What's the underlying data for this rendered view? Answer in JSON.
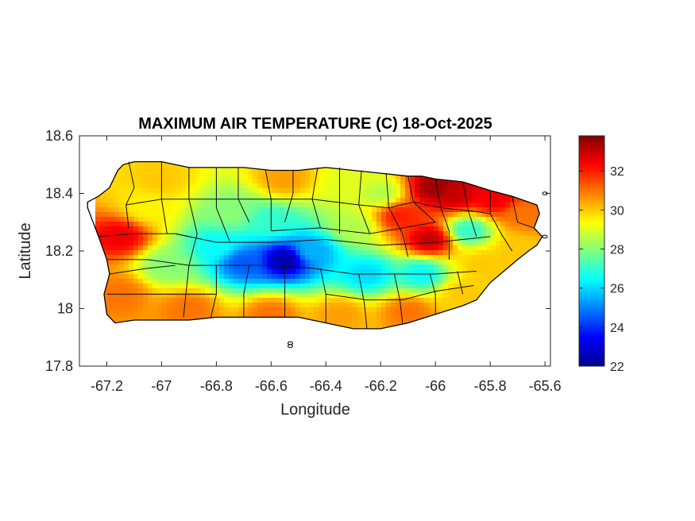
{
  "chart_data": {
    "type": "heatmap",
    "title": "MAXIMUM AIR TEMPERATURE (C) 18-Oct-2025",
    "xlabel": "Longitude",
    "ylabel": "Latitude",
    "xlim": [
      -67.3,
      -65.58
    ],
    "ylim": [
      17.8,
      18.6
    ],
    "xticks": [
      -67.2,
      -67,
      -66.8,
      -66.6,
      -66.4,
      -66.2,
      -66,
      -65.8,
      -65.6
    ],
    "xtick_labels": [
      "-67.2",
      "-67",
      "-66.8",
      "-66.6",
      "-66.4",
      "-66.2",
      "-66",
      "-65.8",
      "-65.6"
    ],
    "yticks": [
      17.8,
      18,
      18.2,
      18.4,
      18.6
    ],
    "ytick_labels": [
      "17.8",
      "18",
      "18.2",
      "18.4",
      "18.6"
    ],
    "colorbar": {
      "range": [
        22,
        33.8
      ],
      "ticks": [
        22,
        24,
        26,
        28,
        30,
        32
      ],
      "tick_labels": [
        "22",
        "24",
        "26",
        "28",
        "30",
        "32"
      ],
      "colormap": "jet",
      "placement": "right"
    },
    "field_samples": [
      {
        "lon": -66.55,
        "lat": 18.17,
        "value": 22.5
      },
      {
        "lon": -66.7,
        "lat": 18.16,
        "value": 24.5
      },
      {
        "lon": -66.45,
        "lat": 18.2,
        "value": 25.5
      },
      {
        "lon": -66.8,
        "lat": 18.22,
        "value": 26.5
      },
      {
        "lon": -66.25,
        "lat": 18.12,
        "value": 26
      },
      {
        "lon": -66.05,
        "lat": 18.12,
        "value": 26.5
      },
      {
        "lon": -65.88,
        "lat": 18.27,
        "value": 27
      },
      {
        "lon": -66.6,
        "lat": 18.3,
        "value": 27
      },
      {
        "lon": -66.75,
        "lat": 18.33,
        "value": 28
      },
      {
        "lon": -66.98,
        "lat": 18.15,
        "value": 28
      },
      {
        "lon": -66.3,
        "lat": 18.28,
        "value": 28.5
      },
      {
        "lon": -67.05,
        "lat": 18.35,
        "value": 29.5
      },
      {
        "lon": -67.0,
        "lat": 18.45,
        "value": 30
      },
      {
        "lon": -66.55,
        "lat": 18.45,
        "value": 30.5
      },
      {
        "lon": -66.3,
        "lat": 18.44,
        "value": 29
      },
      {
        "lon": -66.2,
        "lat": 18.4,
        "value": 28.5
      },
      {
        "lon": -67.15,
        "lat": 18.25,
        "value": 32.5
      },
      {
        "lon": -67.15,
        "lat": 18.05,
        "value": 31
      },
      {
        "lon": -66.9,
        "lat": 18.0,
        "value": 31
      },
      {
        "lon": -66.6,
        "lat": 17.98,
        "value": 31
      },
      {
        "lon": -66.35,
        "lat": 17.98,
        "value": 30.5
      },
      {
        "lon": -66.1,
        "lat": 17.99,
        "value": 31
      },
      {
        "lon": -65.9,
        "lat": 18.05,
        "value": 30
      },
      {
        "lon": -65.82,
        "lat": 18.15,
        "value": 30
      },
      {
        "lon": -66.0,
        "lat": 18.42,
        "value": 33.5
      },
      {
        "lon": -65.93,
        "lat": 18.4,
        "value": 33
      },
      {
        "lon": -65.78,
        "lat": 18.38,
        "value": 32.5
      },
      {
        "lon": -65.68,
        "lat": 18.33,
        "value": 31
      },
      {
        "lon": -66.02,
        "lat": 18.24,
        "value": 33
      },
      {
        "lon": -66.13,
        "lat": 18.32,
        "value": 32
      },
      {
        "lon": -65.7,
        "lat": 18.2,
        "value": 30
      }
    ]
  }
}
